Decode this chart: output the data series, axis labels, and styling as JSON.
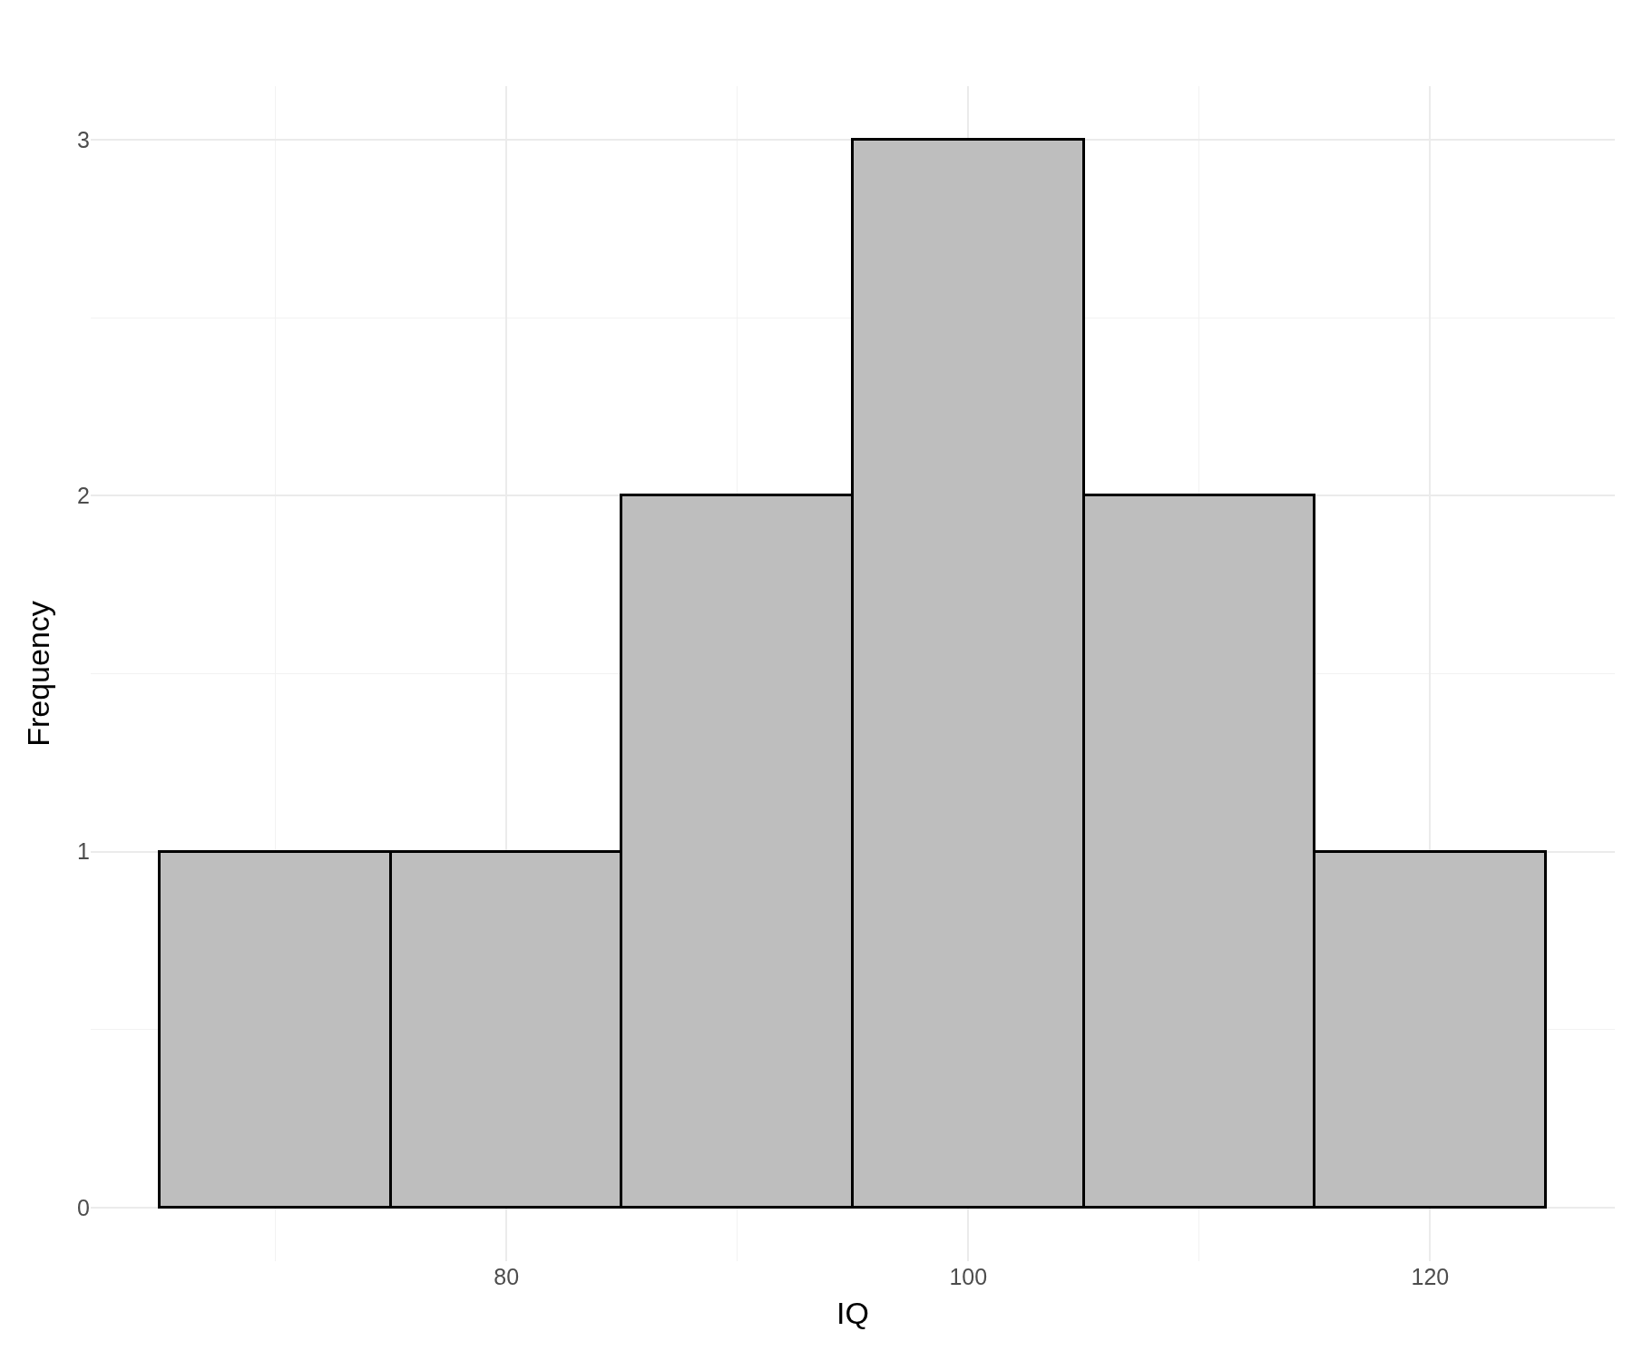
{
  "chart_data": {
    "type": "histogram",
    "xlabel": "IQ",
    "ylabel": "Frequency",
    "bins": [
      65,
      75,
      85,
      95,
      105,
      115,
      125
    ],
    "values": [
      1,
      1,
      2,
      3,
      2,
      1
    ],
    "color": "#bebebe",
    "xlim": [
      62,
      128
    ],
    "ylim": [
      -0.15,
      3.15
    ],
    "xticks": [
      {
        "value": 70,
        "label": null
      },
      80,
      {
        "value": 90,
        "label": null
      },
      100,
      {
        "value": 110,
        "label": null
      },
      120
    ],
    "yticks": [
      0,
      {
        "value": 0.5,
        "label": null
      },
      1,
      {
        "value": 1.5,
        "label": null
      },
      2,
      {
        "value": 2.5,
        "label": null
      },
      3
    ],
    "grid": true
  }
}
